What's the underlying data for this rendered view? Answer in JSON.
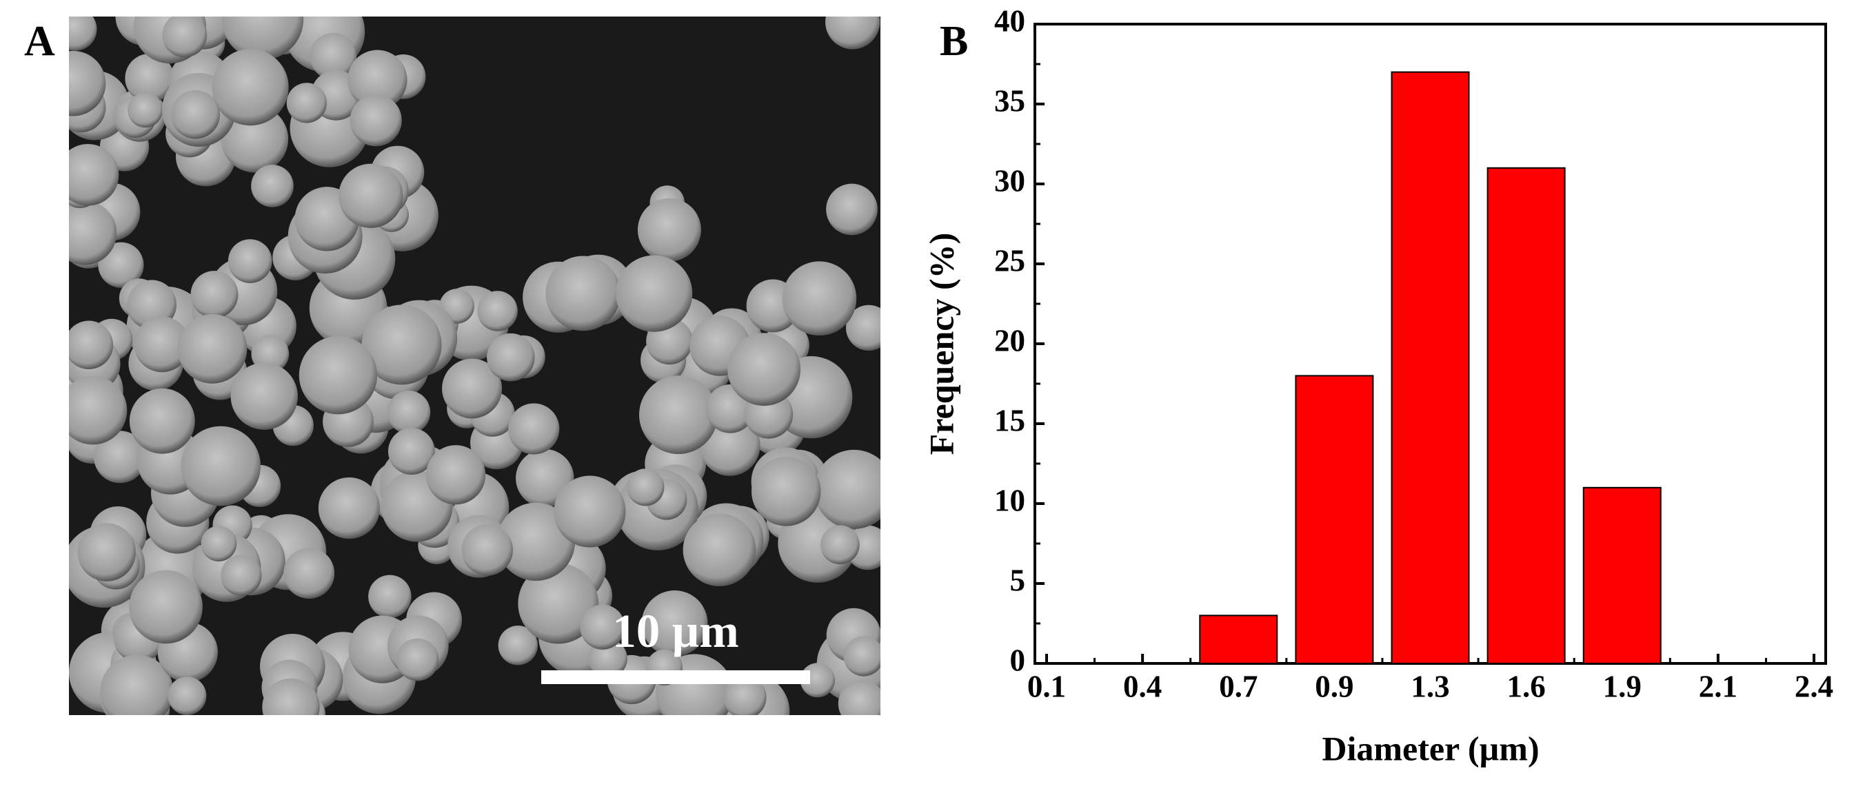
{
  "panel_a": {
    "label": "A",
    "scale_bar": "10 µm"
  },
  "chart_data": {
    "type": "bar",
    "panel_label": "B",
    "x_label": "Diameter (µm)",
    "y_label": "Frequency (%)",
    "categories": [
      "0.1",
      "0.4",
      "0.7",
      "0.9",
      "1.3",
      "1.6",
      "1.9",
      "2.1",
      "2.4"
    ],
    "values": [
      0,
      0,
      3,
      18,
      37,
      31,
      11,
      0,
      0
    ],
    "color": "#ff0000",
    "ylim": [
      0,
      40
    ],
    "yticks": [
      0,
      5,
      10,
      15,
      20,
      25,
      30,
      35,
      40
    ],
    "grid": false
  }
}
